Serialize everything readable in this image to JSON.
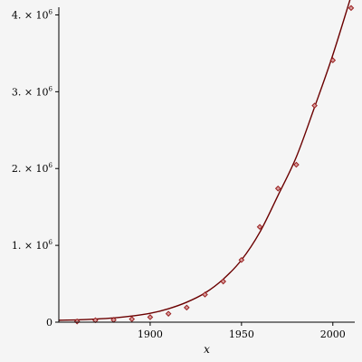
{
  "chart_data": {
    "type": "scatter",
    "title": "",
    "xlabel": "x",
    "ylabel": "",
    "xlim": [
      1850,
      2012
    ],
    "ylim": [
      0,
      4100000
    ],
    "grid": false,
    "legend": "none",
    "x_ticks": [
      {
        "value": 1900,
        "label": "1900"
      },
      {
        "value": 1950,
        "label": "1950"
      },
      {
        "value": 2000,
        "label": "2000"
      }
    ],
    "y_ticks": [
      {
        "value": 0,
        "label": "0",
        "exp": ""
      },
      {
        "value": 1000000,
        "label": "1. × 10",
        "exp": "6"
      },
      {
        "value": 2000000,
        "label": "2. × 10",
        "exp": "6"
      },
      {
        "value": 3000000,
        "label": "3. × 10",
        "exp": "6"
      },
      {
        "value": 4000000,
        "label": "4. × 10",
        "exp": "6"
      }
    ],
    "series": [
      {
        "type": "scatter",
        "x": [
          1860,
          1870,
          1880,
          1890,
          1900,
          1910,
          1920,
          1930,
          1940,
          1950,
          1960,
          1970,
          1980,
          1990,
          2000,
          2010
        ],
        "y": [
          10000,
          25000,
          30000,
          40000,
          65000,
          110000,
          190000,
          360000,
          530000,
          810000,
          1240000,
          1740000,
          2050000,
          2820000,
          3410000,
          4090000
        ]
      },
      {
        "type": "line",
        "x": [
          1850,
          1860,
          1870,
          1880,
          1890,
          1900,
          1910,
          1920,
          1930,
          1940,
          1950,
          1960,
          1970,
          1980,
          1990,
          2000,
          2012
        ],
        "y": [
          25000,
          30000,
          40000,
          55000,
          80000,
          115000,
          175000,
          260000,
          380000,
          560000,
          810000,
          1170000,
          1650000,
          2150000,
          2800000,
          3480000,
          4400000
        ]
      }
    ],
    "colors": {
      "curve": "#6b0000",
      "point_fill": "#d9a0a0",
      "point_stroke": "#9a2020",
      "axes": "#000000",
      "background": "#f5f5f5"
    }
  }
}
